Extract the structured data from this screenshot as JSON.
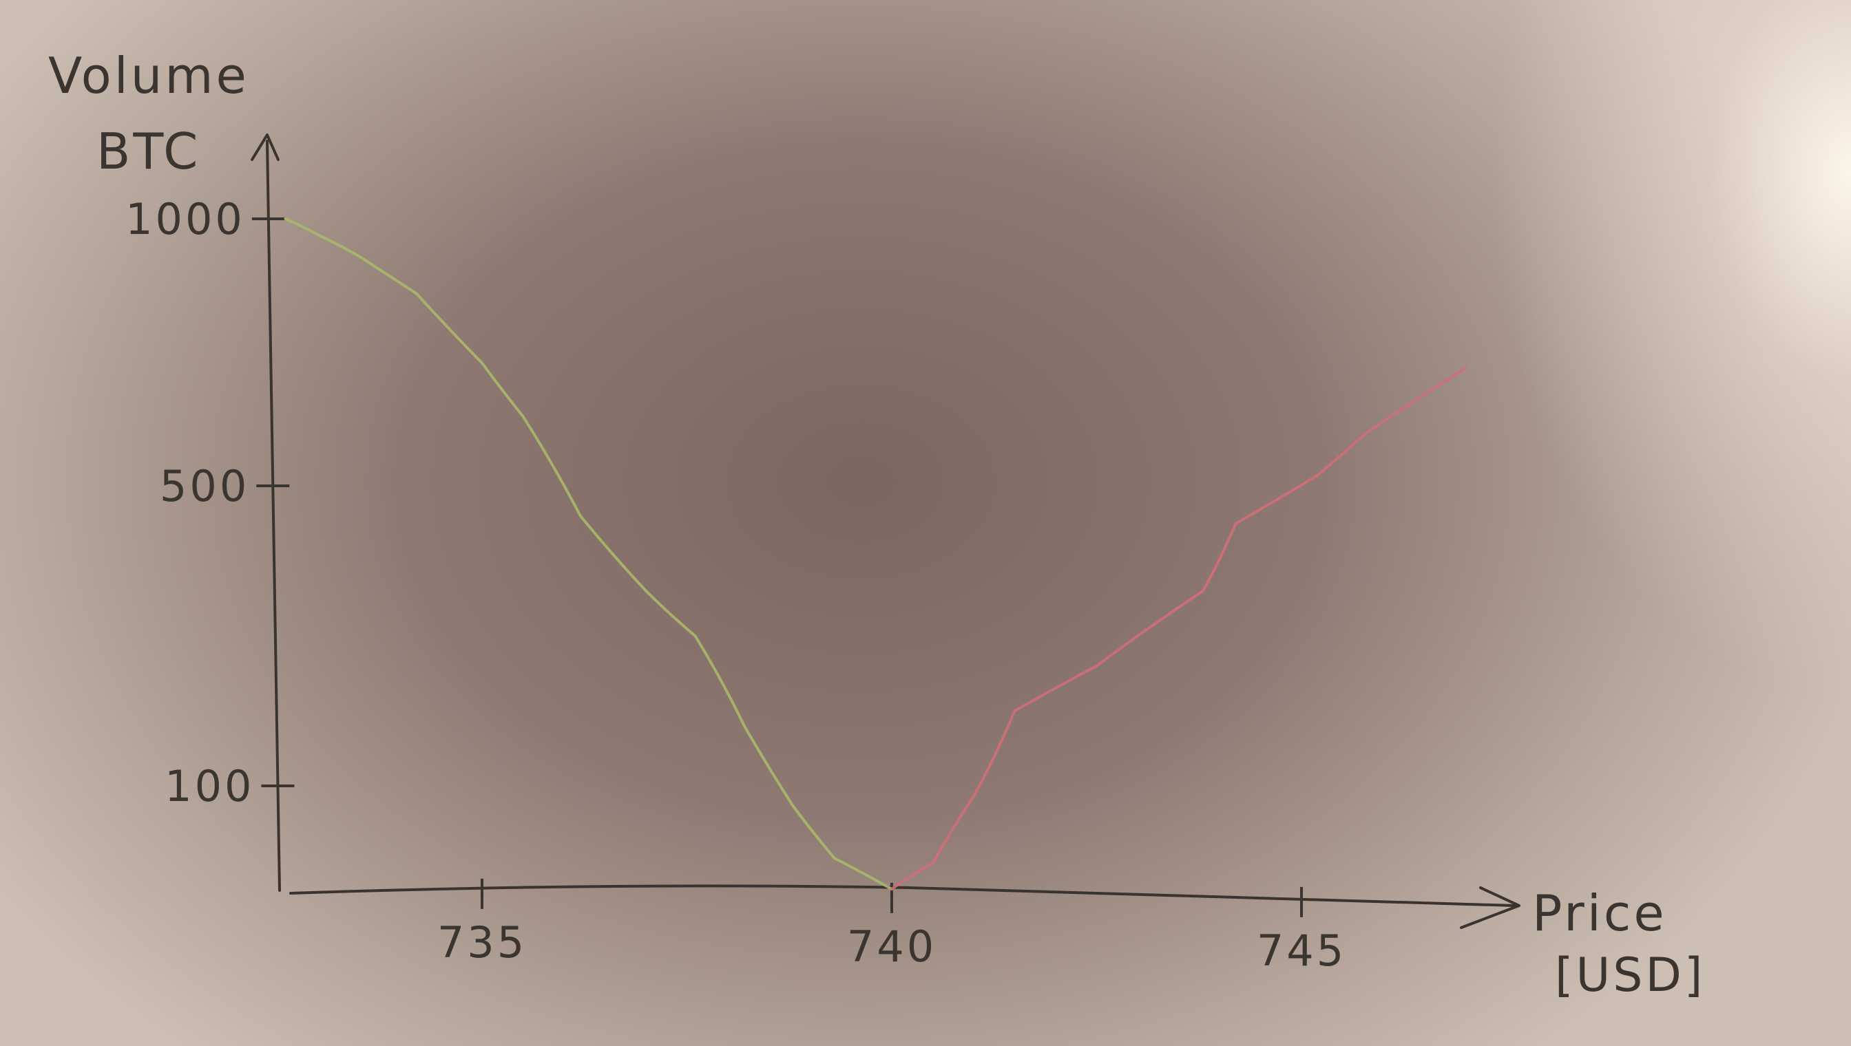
{
  "chart_data": {
    "type": "line",
    "xlabel": "Price\n[USD]",
    "ylabel": "Volume\nBTC",
    "x_ticks": [
      735,
      740,
      745
    ],
    "y_ticks": [
      100,
      500,
      1000
    ],
    "xlim": [
      732.6,
      748
    ],
    "y_scale": "non-linear (hand-drawn; ticks at 100, 500, 1000)",
    "grid": false,
    "legend": "none",
    "series": [
      {
        "color": "#a9b86a",
        "points": [
          {
            "x": 732.6,
            "y": 1000
          },
          {
            "x": 733.0,
            "y": 970
          },
          {
            "x": 733.5,
            "y": 930
          },
          {
            "x": 734.2,
            "y": 860
          },
          {
            "x": 735.0,
            "y": 730
          },
          {
            "x": 735.5,
            "y": 630
          },
          {
            "x": 736.2,
            "y": 460
          },
          {
            "x": 737.0,
            "y": 360
          },
          {
            "x": 737.6,
            "y": 300
          },
          {
            "x": 738.2,
            "y": 180
          },
          {
            "x": 738.8,
            "y": 80
          },
          {
            "x": 739.3,
            "y": 30
          },
          {
            "x": 740.0,
            "y": 0
          }
        ]
      },
      {
        "color": "#cf6f76",
        "points": [
          {
            "x": 740.0,
            "y": 0
          },
          {
            "x": 740.5,
            "y": 25
          },
          {
            "x": 741.0,
            "y": 90
          },
          {
            "x": 741.5,
            "y": 200
          },
          {
            "x": 742.5,
            "y": 260
          },
          {
            "x": 743.8,
            "y": 360
          },
          {
            "x": 744.2,
            "y": 450
          },
          {
            "x": 745.2,
            "y": 520
          },
          {
            "x": 745.8,
            "y": 600
          },
          {
            "x": 747.0,
            "y": 720
          }
        ]
      }
    ]
  }
}
